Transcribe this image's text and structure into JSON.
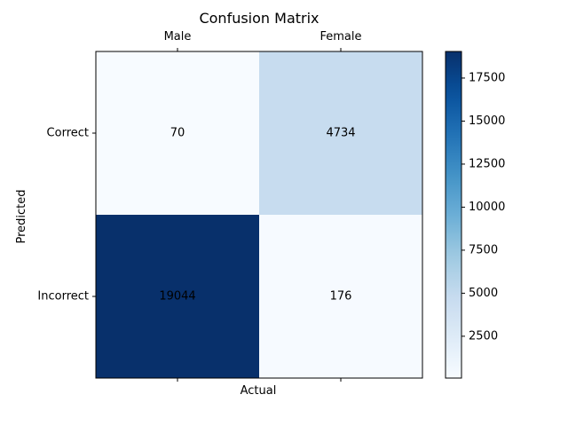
{
  "chart_data": {
    "type": "heatmap",
    "title": "Confusion Matrix",
    "xlabel": "Actual",
    "ylabel": "Predicted",
    "x_categories": [
      "Male",
      "Female"
    ],
    "y_categories": [
      "Correct",
      "Incorrect"
    ],
    "values": [
      [
        70,
        4734
      ],
      [
        19044,
        176
      ]
    ],
    "colormap": "Blues",
    "colorbar": {
      "vmin": 70,
      "vmax": 19044,
      "ticks": [
        2500,
        5000,
        7500,
        10000,
        12500,
        15000,
        17500
      ]
    }
  }
}
